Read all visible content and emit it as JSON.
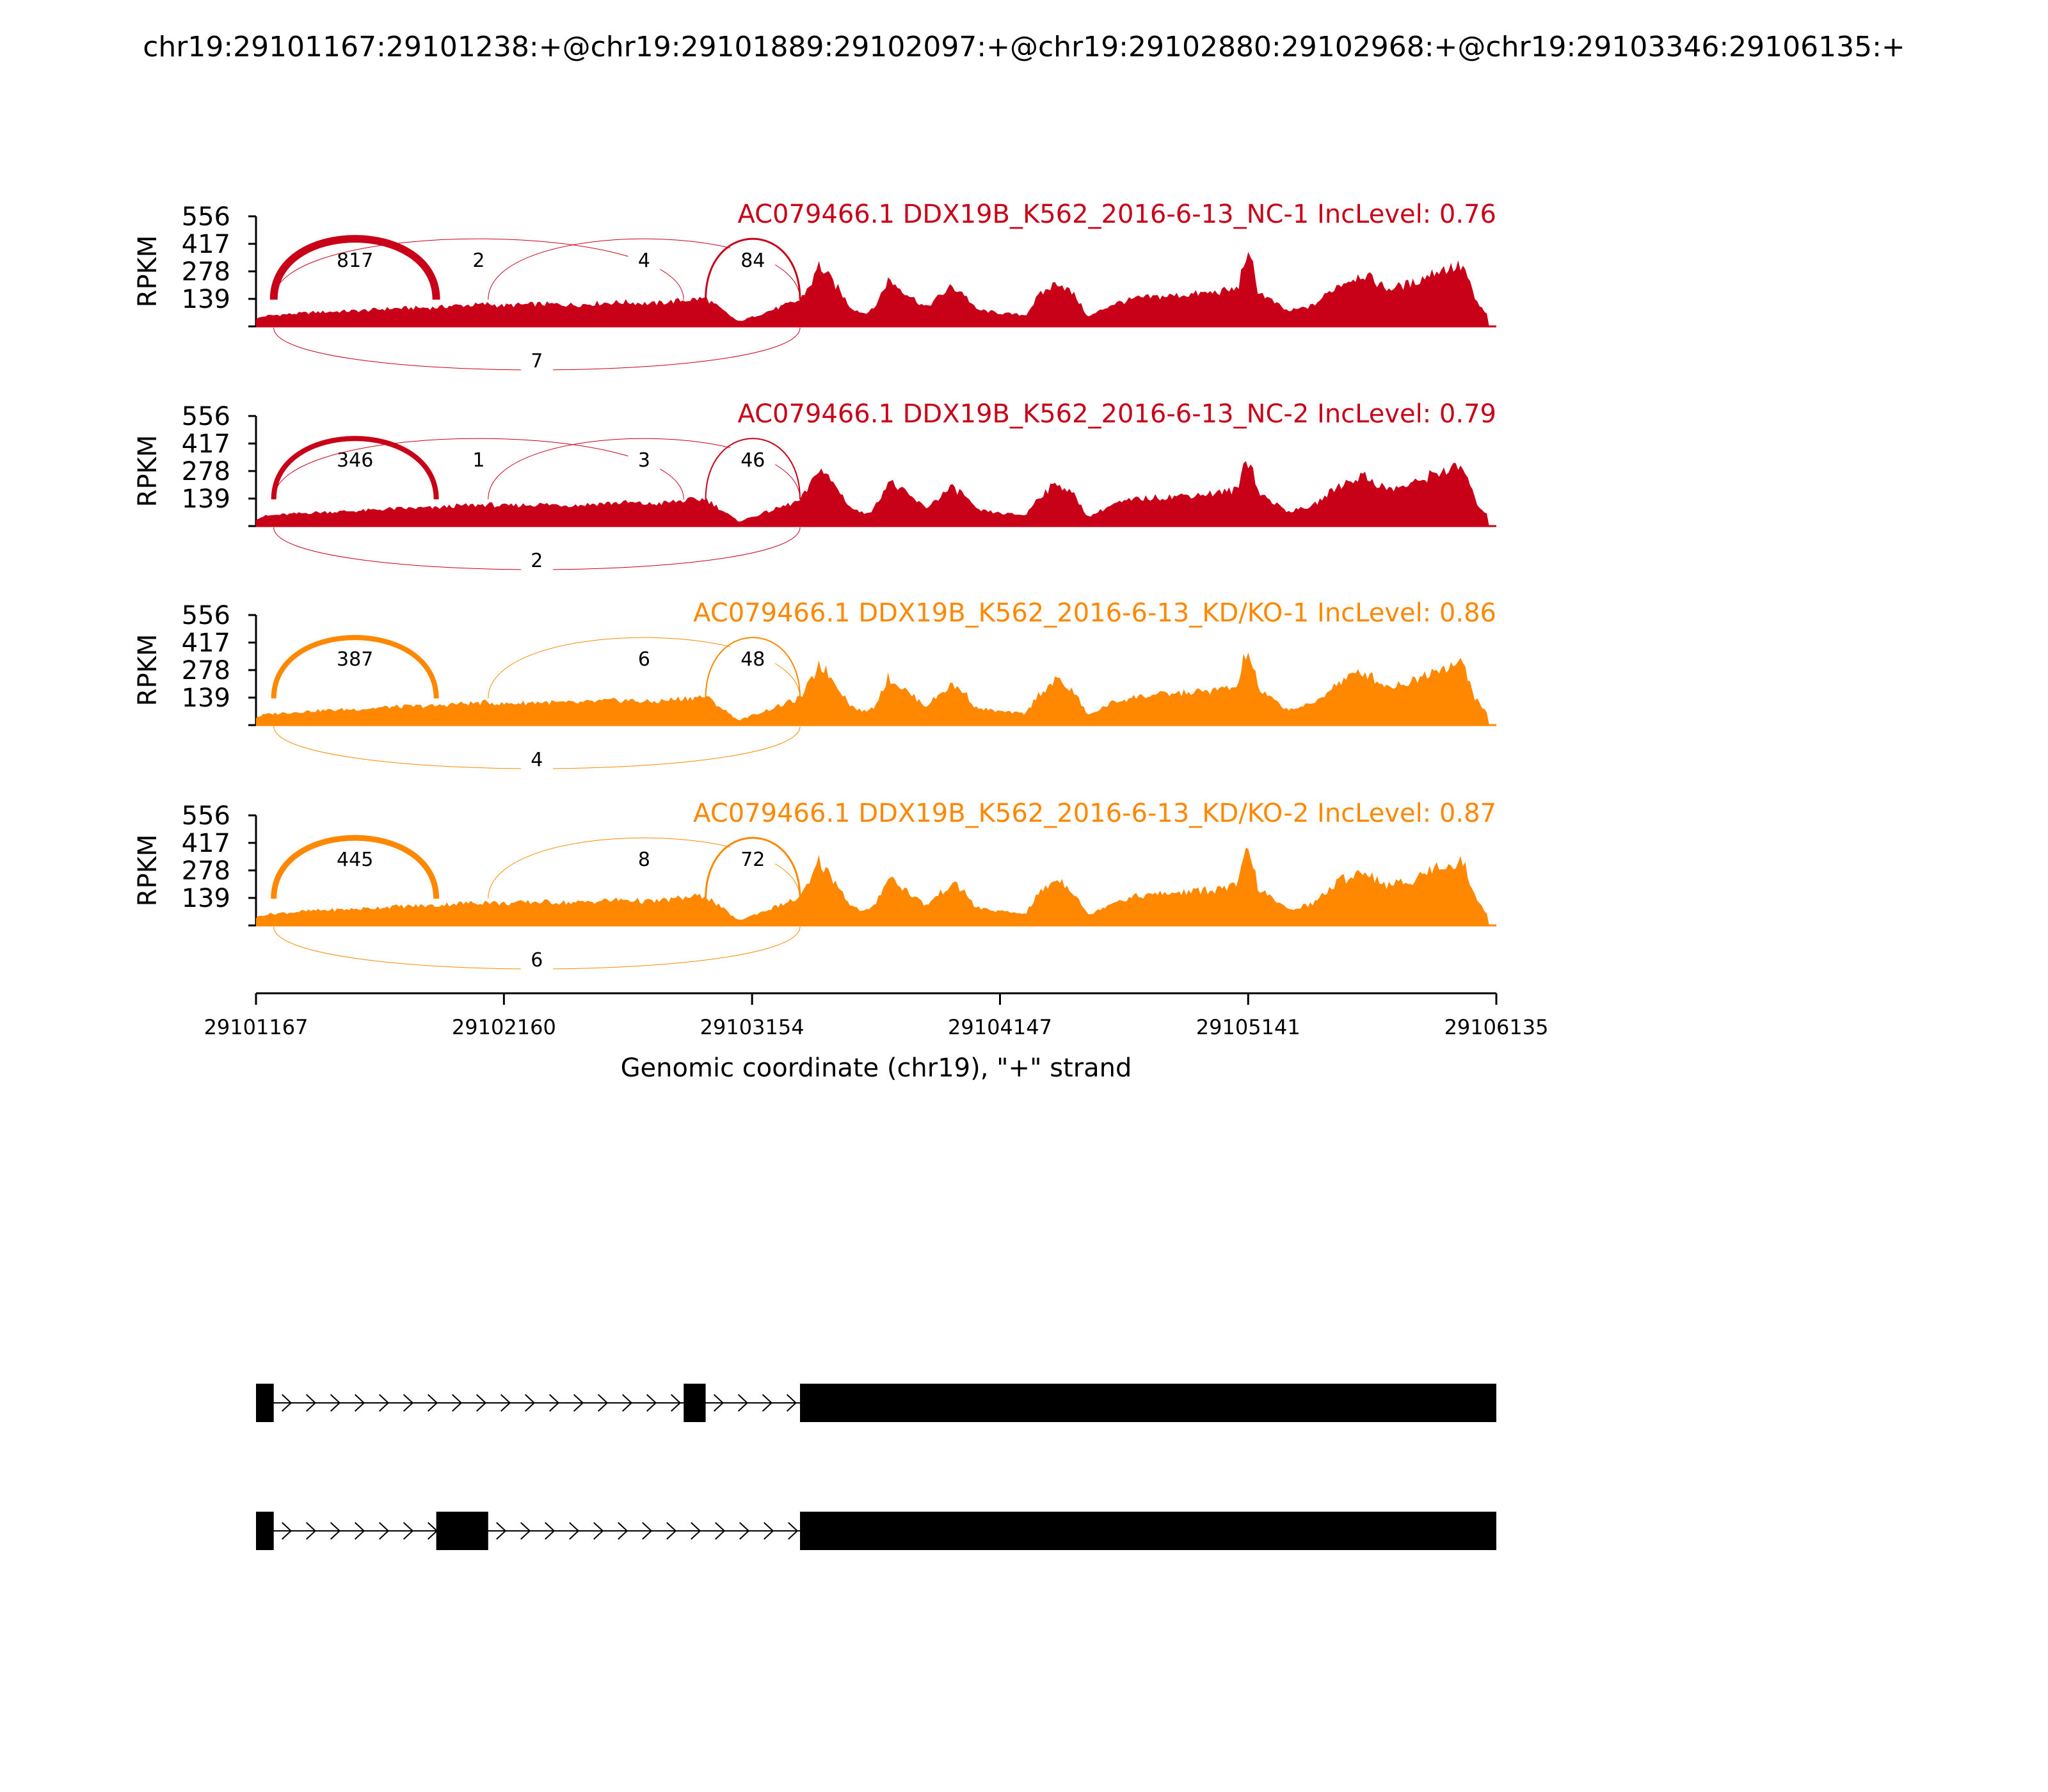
{
  "figure": {
    "title": "chr19:29101167:29101238:+@chr19:29101889:29102097:+@chr19:29102880:29102968:+@chr19:29103346:29106135:+"
  },
  "chart_data": {
    "type": "area",
    "xlabel": "Genomic coordinate (chr19), \"+\" strand",
    "ylabel": "RPKM",
    "xlim": [
      29101167,
      29106135
    ],
    "x_ticks": [
      "29101167",
      "29102160",
      "29103154",
      "29104147",
      "29105141",
      "29106135"
    ],
    "y_ticks": [
      "556",
      "417",
      "278",
      "139"
    ],
    "ylim": [
      0,
      556
    ],
    "colors": {
      "NC": "#c80018",
      "KD": "#ff8800"
    },
    "exons": [
      [
        29101167,
        29101238
      ],
      [
        29101889,
        29102097
      ],
      [
        29102880,
        29102968
      ],
      [
        29103346,
        29106135
      ]
    ],
    "isoforms": [
      [
        [
          29101167,
          29101238
        ],
        [
          29102880,
          29102968
        ],
        [
          29103346,
          29106135
        ]
      ],
      [
        [
          29101167,
          29101238
        ],
        [
          29101889,
          29102097
        ],
        [
          29103346,
          29106135
        ]
      ]
    ],
    "coverage_profile": {
      "x": [
        29101167,
        29101200,
        29101240,
        29101400,
        29101600,
        29101700,
        29101850,
        29101889,
        29101950,
        29102050,
        29102097,
        29102150,
        29102300,
        29102450,
        29102550,
        29102650,
        29102750,
        29102880,
        29102968,
        29103100,
        29103346,
        29103400,
        29103420,
        29103500,
        29103550,
        29103600,
        29103640,
        29103700,
        29103800,
        29103850,
        29103950,
        29104000,
        29104050,
        29104150,
        29104250,
        29104300,
        29104380,
        29104450,
        29104500,
        29104600,
        29104700,
        29104800,
        29104900,
        29105000,
        29105100,
        29105130,
        29105160,
        29105180,
        29105220,
        29105300,
        29105400,
        29105500,
        29105600,
        29105700,
        29105800,
        29105900,
        29105990,
        29106010,
        29106050,
        29106135
      ],
      "y": [
        40,
        55,
        60,
        75,
        85,
        95,
        100,
        100,
        110,
        115,
        120,
        110,
        120,
        115,
        125,
        130,
        120,
        140,
        150,
        25,
        140,
        250,
        330,
        200,
        100,
        70,
        90,
        250,
        150,
        100,
        210,
        180,
        90,
        70,
        60,
        160,
        240,
        160,
        50,
        120,
        150,
        160,
        170,
        180,
        200,
        380,
        320,
        190,
        150,
        80,
        110,
        220,
        280,
        200,
        230,
        300,
        320,
        300,
        140,
        0
      ]
    },
    "samples": [
      {
        "name": "AC079466.1 DDX19B_K562_2016-6-13_NC-1 IncLevel: 0.76",
        "group": "NC",
        "scale": 0.95,
        "junctions": [
          {
            "from": 29101238,
            "to": 29101889,
            "reads": "817",
            "side": "above",
            "width": 12
          },
          {
            "from": 29101238,
            "to": 29102880,
            "reads": "2",
            "side": "above",
            "width": 1
          },
          {
            "from": 29102097,
            "to": 29103346,
            "reads": "4",
            "side": "above",
            "width": 1
          },
          {
            "from": 29102968,
            "to": 29103346,
            "reads": "84",
            "side": "above",
            "width": 3
          },
          {
            "from": 29101238,
            "to": 29103346,
            "reads": "7",
            "side": "below",
            "width": 1
          }
        ]
      },
      {
        "name": "AC079466.1 DDX19B_K562_2016-6-13_NC-2 IncLevel: 0.79",
        "group": "NC",
        "scale": 0.92,
        "junctions": [
          {
            "from": 29101238,
            "to": 29101889,
            "reads": "346",
            "side": "above",
            "width": 8
          },
          {
            "from": 29101238,
            "to": 29102880,
            "reads": "1",
            "side": "above",
            "width": 1
          },
          {
            "from": 29102097,
            "to": 29103346,
            "reads": "3",
            "side": "above",
            "width": 1
          },
          {
            "from": 29102968,
            "to": 29103346,
            "reads": "46",
            "side": "above",
            "width": 2
          },
          {
            "from": 29101238,
            "to": 29103346,
            "reads": "2",
            "side": "below",
            "width": 1
          }
        ]
      },
      {
        "name": "AC079466.1 DDX19B_K562_2016-6-13_KD/KO-1 IncLevel: 0.86",
        "group": "KD",
        "scale": 0.97,
        "junctions": [
          {
            "from": 29101238,
            "to": 29101889,
            "reads": "387",
            "side": "above",
            "width": 8
          },
          {
            "from": 29102097,
            "to": 29103346,
            "reads": "6",
            "side": "above",
            "width": 1
          },
          {
            "from": 29102968,
            "to": 29103346,
            "reads": "48",
            "side": "above",
            "width": 2
          },
          {
            "from": 29101238,
            "to": 29103346,
            "reads": "4",
            "side": "below",
            "width": 1
          }
        ]
      },
      {
        "name": "AC079466.1 DDX19B_K562_2016-6-13_KD/KO-2 IncLevel: 0.87",
        "group": "KD",
        "scale": 1.0,
        "junctions": [
          {
            "from": 29101238,
            "to": 29101889,
            "reads": "445",
            "side": "above",
            "width": 9
          },
          {
            "from": 29102097,
            "to": 29103346,
            "reads": "8",
            "side": "above",
            "width": 1
          },
          {
            "from": 29102968,
            "to": 29103346,
            "reads": "72",
            "side": "above",
            "width": 3
          },
          {
            "from": 29101238,
            "to": 29103346,
            "reads": "6",
            "side": "below",
            "width": 1
          }
        ]
      }
    ]
  }
}
